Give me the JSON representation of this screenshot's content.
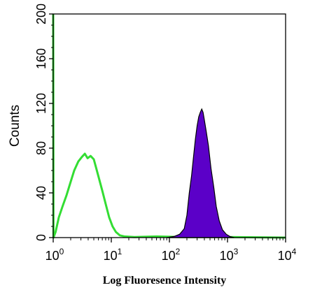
{
  "chart_data": {
    "type": "area",
    "title": "",
    "xlabel": "Log Fluoresence Intensity",
    "ylabel": "Counts",
    "xscale": "log",
    "xlim": [
      1,
      10000
    ],
    "ylim": [
      0,
      200
    ],
    "grid": false,
    "x_ticks": [
      {
        "base": "10",
        "exp": "0",
        "value": 1
      },
      {
        "base": "10",
        "exp": "1",
        "value": 10
      },
      {
        "base": "10",
        "exp": "2",
        "value": 100
      },
      {
        "base": "10",
        "exp": "3",
        "value": 1000
      },
      {
        "base": "10",
        "exp": "4",
        "value": 10000
      }
    ],
    "y_ticks": [
      0,
      40,
      80,
      120,
      160,
      200
    ],
    "series": [
      {
        "style": "outline",
        "color": "#33dd33",
        "points": [
          [
            1.0,
            200
          ],
          [
            1.01,
            0
          ],
          [
            1.1,
            5
          ],
          [
            1.25,
            18
          ],
          [
            1.45,
            28
          ],
          [
            1.7,
            38
          ],
          [
            2.0,
            50
          ],
          [
            2.3,
            60
          ],
          [
            2.7,
            68
          ],
          [
            3.1,
            72
          ],
          [
            3.5,
            75
          ],
          [
            3.9,
            71
          ],
          [
            4.4,
            73
          ],
          [
            5.0,
            70
          ],
          [
            5.5,
            62
          ],
          [
            6.2,
            52
          ],
          [
            7.0,
            42
          ],
          [
            8.0,
            30
          ],
          [
            9.2,
            18
          ],
          [
            10.5,
            10
          ],
          [
            12.0,
            5
          ],
          [
            14.0,
            2
          ],
          [
            17.0,
            1
          ],
          [
            25.0,
            0.5
          ],
          [
            60.0,
            1
          ],
          [
            150,
            0.5
          ],
          [
            500,
            0.5
          ],
          [
            1000,
            0.5
          ],
          [
            10000,
            0
          ]
        ]
      },
      {
        "style": "filled",
        "color": "#5b00c8",
        "points": [
          [
            90,
            0
          ],
          [
            120,
            1
          ],
          [
            150,
            3
          ],
          [
            180,
            8
          ],
          [
            200,
            20
          ],
          [
            220,
            40
          ],
          [
            240,
            55
          ],
          [
            260,
            72
          ],
          [
            280,
            88
          ],
          [
            300,
            100
          ],
          [
            320,
            108
          ],
          [
            340,
            112
          ],
          [
            360,
            115
          ],
          [
            380,
            112
          ],
          [
            400,
            105
          ],
          [
            430,
            95
          ],
          [
            470,
            82
          ],
          [
            520,
            62
          ],
          [
            580,
            45
          ],
          [
            640,
            28
          ],
          [
            720,
            15
          ],
          [
            820,
            7
          ],
          [
            950,
            3
          ],
          [
            1100,
            1
          ],
          [
            1300,
            0
          ]
        ]
      }
    ]
  }
}
